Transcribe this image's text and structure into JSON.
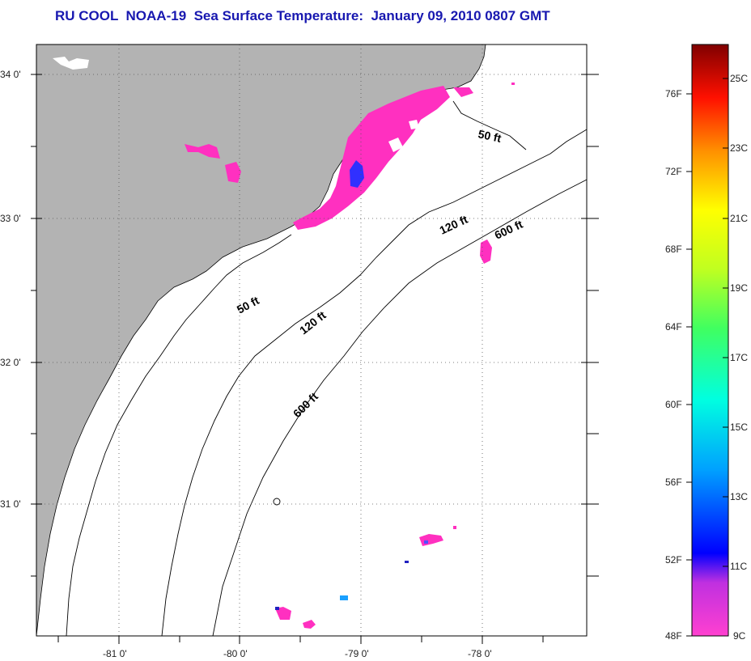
{
  "title": "RU COOL  NOAA-19  Sea Surface Temperature:  January 09, 2010 0807 GMT",
  "map": {
    "lat_labels": [
      "34 0'",
      "33 0'",
      "32 0'",
      "31 0'"
    ],
    "lon_labels": [
      "-81 0'",
      "-80 0'",
      "-79 0'",
      "-78 0'"
    ],
    "contour_labels": [
      "50 ft",
      "50 ft",
      "120 ft",
      "120 ft",
      "600 ft",
      "600 ft"
    ],
    "colors": {
      "land": "#b3b3b3",
      "ocean": "#ffffff",
      "sst_cold": "#ff30c0",
      "sst_colder": "#3030ff"
    }
  },
  "colorbar": {
    "fahrenheit_labels": [
      "76F",
      "72F",
      "68F",
      "64F",
      "60F",
      "56F",
      "52F",
      "48F"
    ],
    "celsius_labels": [
      "25C",
      "23C",
      "21C",
      "19C",
      "17C",
      "15C",
      "13C",
      "11C",
      "9C"
    ]
  }
}
